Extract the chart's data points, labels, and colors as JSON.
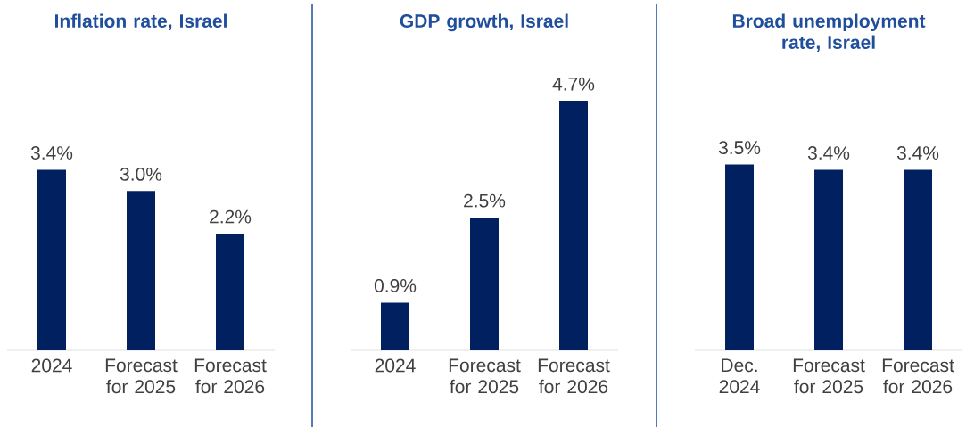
{
  "chart_data": [
    {
      "type": "bar",
      "title": "Inflation rate, Israel",
      "categories": [
        "2024",
        "Forecast for 2025",
        "Forecast for 2026"
      ],
      "values": [
        3.4,
        3.0,
        2.2
      ],
      "value_labels": [
        "3.4%",
        "3.0%",
        "2.2%"
      ],
      "color": "#002060"
    },
    {
      "type": "bar",
      "title": "GDP growth, Israel",
      "categories": [
        "2024",
        "Forecast for 2025",
        "Forecast for 2026"
      ],
      "values": [
        0.9,
        2.5,
        4.7
      ],
      "value_labels": [
        "0.9%",
        "2.5%",
        "4.7%"
      ],
      "color": "#002060"
    },
    {
      "type": "bar",
      "title": "Broad unemployment rate, Israel",
      "categories": [
        "Dec. 2024",
        "Forecast for 2025",
        "Forecast for 2026"
      ],
      "values": [
        3.5,
        3.4,
        3.4
      ],
      "value_labels": [
        "3.5%",
        "3.4%",
        "3.4%"
      ],
      "color": "#002060"
    }
  ]
}
